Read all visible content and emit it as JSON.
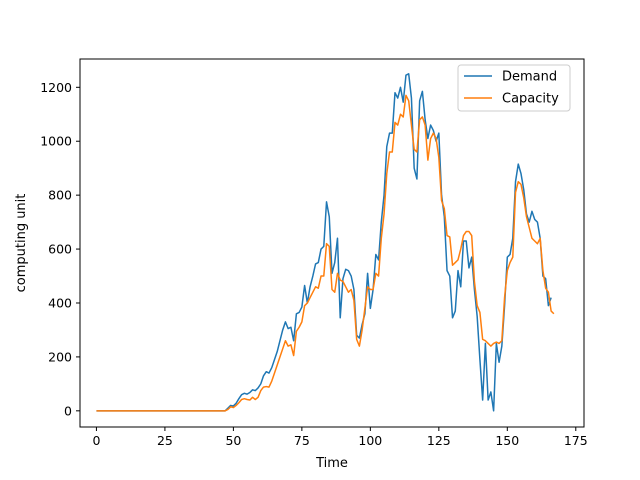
{
  "chart_data": {
    "type": "line",
    "title": "",
    "xlabel": "Time",
    "ylabel": "computing unit",
    "xlim": [
      -6,
      178
    ],
    "ylim": [
      -60,
      1305
    ],
    "x_ticks": [
      0,
      25,
      50,
      75,
      100,
      125,
      150,
      175
    ],
    "y_ticks": [
      0,
      200,
      400,
      600,
      800,
      1000,
      1200
    ],
    "grid": false,
    "legend": "top-right",
    "series": [
      {
        "name": "Demand",
        "color": "#1f77b4",
        "points": [
          [
            0,
            0
          ],
          [
            10,
            0
          ],
          [
            20,
            0
          ],
          [
            30,
            0
          ],
          [
            40,
            0
          ],
          [
            47,
            0
          ],
          [
            48,
            10
          ],
          [
            49,
            20
          ],
          [
            50,
            18
          ],
          [
            51,
            28
          ],
          [
            52,
            45
          ],
          [
            53,
            60
          ],
          [
            54,
            65
          ],
          [
            55,
            62
          ],
          [
            56,
            68
          ],
          [
            57,
            78
          ],
          [
            58,
            75
          ],
          [
            59,
            85
          ],
          [
            60,
            100
          ],
          [
            61,
            130
          ],
          [
            62,
            145
          ],
          [
            63,
            140
          ],
          [
            64,
            160
          ],
          [
            65,
            190
          ],
          [
            66,
            220
          ],
          [
            67,
            260
          ],
          [
            68,
            300
          ],
          [
            69,
            330
          ],
          [
            70,
            305
          ],
          [
            71,
            310
          ],
          [
            72,
            260
          ],
          [
            73,
            360
          ],
          [
            74,
            365
          ],
          [
            75,
            385
          ],
          [
            76,
            465
          ],
          [
            77,
            400
          ],
          [
            78,
            460
          ],
          [
            79,
            500
          ],
          [
            80,
            545
          ],
          [
            81,
            550
          ],
          [
            82,
            600
          ],
          [
            83,
            610
          ],
          [
            84,
            775
          ],
          [
            85,
            720
          ],
          [
            86,
            510
          ],
          [
            87,
            550
          ],
          [
            88,
            640
          ],
          [
            89,
            345
          ],
          [
            90,
            490
          ],
          [
            91,
            525
          ],
          [
            92,
            520
          ],
          [
            93,
            500
          ],
          [
            94,
            450
          ],
          [
            95,
            280
          ],
          [
            96,
            270
          ],
          [
            97,
            320
          ],
          [
            98,
            360
          ],
          [
            99,
            510
          ],
          [
            100,
            380
          ],
          [
            101,
            450
          ],
          [
            102,
            580
          ],
          [
            103,
            560
          ],
          [
            104,
            700
          ],
          [
            105,
            800
          ],
          [
            106,
            980
          ],
          [
            107,
            1030
          ],
          [
            108,
            1030
          ],
          [
            109,
            1180
          ],
          [
            110,
            1160
          ],
          [
            111,
            1200
          ],
          [
            112,
            1145
          ],
          [
            113,
            1245
          ],
          [
            114,
            1250
          ],
          [
            115,
            1160
          ],
          [
            116,
            900
          ],
          [
            117,
            860
          ],
          [
            118,
            1150
          ],
          [
            119,
            1185
          ],
          [
            120,
            1080
          ],
          [
            121,
            1010
          ],
          [
            122,
            1060
          ],
          [
            123,
            1040
          ],
          [
            124,
            1000
          ],
          [
            125,
            1030
          ],
          [
            126,
            800
          ],
          [
            127,
            720
          ],
          [
            128,
            520
          ],
          [
            129,
            500
          ],
          [
            130,
            345
          ],
          [
            131,
            370
          ],
          [
            132,
            520
          ],
          [
            133,
            460
          ],
          [
            134,
            630
          ],
          [
            135,
            630
          ],
          [
            136,
            530
          ],
          [
            137,
            570
          ],
          [
            138,
            450
          ],
          [
            139,
            350
          ],
          [
            140,
            190
          ],
          [
            141,
            40
          ],
          [
            142,
            250
          ],
          [
            143,
            40
          ],
          [
            144,
            70
          ],
          [
            145,
            0
          ],
          [
            146,
            250
          ],
          [
            147,
            180
          ],
          [
            148,
            240
          ],
          [
            149,
            390
          ],
          [
            150,
            570
          ],
          [
            151,
            580
          ],
          [
            152,
            640
          ],
          [
            153,
            850
          ],
          [
            154,
            915
          ],
          [
            155,
            880
          ],
          [
            156,
            820
          ],
          [
            157,
            730
          ],
          [
            158,
            700
          ],
          [
            159,
            740
          ],
          [
            160,
            710
          ],
          [
            161,
            700
          ],
          [
            162,
            640
          ],
          [
            163,
            500
          ],
          [
            164,
            490
          ],
          [
            165,
            390
          ],
          [
            166,
            420
          ]
        ]
      },
      {
        "name": "Capacity",
        "color": "#ff7f0e",
        "points": [
          [
            0,
            0
          ],
          [
            10,
            0
          ],
          [
            20,
            0
          ],
          [
            30,
            0
          ],
          [
            40,
            0
          ],
          [
            47,
            0
          ],
          [
            48,
            5
          ],
          [
            49,
            15
          ],
          [
            50,
            12
          ],
          [
            51,
            20
          ],
          [
            52,
            30
          ],
          [
            53,
            42
          ],
          [
            54,
            45
          ],
          [
            55,
            42
          ],
          [
            56,
            40
          ],
          [
            57,
            50
          ],
          [
            58,
            42
          ],
          [
            59,
            50
          ],
          [
            60,
            75
          ],
          [
            61,
            88
          ],
          [
            62,
            90
          ],
          [
            63,
            88
          ],
          [
            64,
            110
          ],
          [
            65,
            140
          ],
          [
            66,
            170
          ],
          [
            67,
            200
          ],
          [
            68,
            230
          ],
          [
            69,
            260
          ],
          [
            70,
            240
          ],
          [
            71,
            245
          ],
          [
            72,
            205
          ],
          [
            73,
            295
          ],
          [
            74,
            310
          ],
          [
            75,
            330
          ],
          [
            76,
            390
          ],
          [
            77,
            400
          ],
          [
            78,
            420
          ],
          [
            79,
            440
          ],
          [
            80,
            460
          ],
          [
            81,
            455
          ],
          [
            82,
            500
          ],
          [
            83,
            500
          ],
          [
            84,
            620
          ],
          [
            85,
            610
          ],
          [
            86,
            450
          ],
          [
            87,
            440
          ],
          [
            88,
            510
          ],
          [
            89,
            485
          ],
          [
            90,
            480
          ],
          [
            91,
            460
          ],
          [
            92,
            440
          ],
          [
            93,
            450
          ],
          [
            94,
            410
          ],
          [
            95,
            265
          ],
          [
            96,
            240
          ],
          [
            97,
            300
          ],
          [
            98,
            380
          ],
          [
            99,
            460
          ],
          [
            100,
            450
          ],
          [
            101,
            450
          ],
          [
            102,
            510
          ],
          [
            103,
            500
          ],
          [
            104,
            640
          ],
          [
            105,
            730
          ],
          [
            106,
            880
          ],
          [
            107,
            960
          ],
          [
            108,
            960
          ],
          [
            109,
            1070
          ],
          [
            110,
            1060
          ],
          [
            111,
            1100
          ],
          [
            112,
            1090
          ],
          [
            113,
            1170
          ],
          [
            114,
            1150
          ],
          [
            115,
            1060
          ],
          [
            116,
            970
          ],
          [
            117,
            960
          ],
          [
            118,
            1080
          ],
          [
            119,
            1090
          ],
          [
            120,
            1060
          ],
          [
            121,
            930
          ],
          [
            122,
            1010
          ],
          [
            123,
            1030
          ],
          [
            124,
            1010
          ],
          [
            125,
            940
          ],
          [
            126,
            780
          ],
          [
            127,
            750
          ],
          [
            128,
            650
          ],
          [
            129,
            645
          ],
          [
            130,
            540
          ],
          [
            131,
            550
          ],
          [
            132,
            560
          ],
          [
            133,
            600
          ],
          [
            134,
            650
          ],
          [
            135,
            665
          ],
          [
            136,
            665
          ],
          [
            137,
            650
          ],
          [
            138,
            480
          ],
          [
            139,
            390
          ],
          [
            140,
            365
          ],
          [
            141,
            265
          ],
          [
            142,
            260
          ],
          [
            143,
            250
          ],
          [
            144,
            240
          ],
          [
            145,
            250
          ],
          [
            146,
            255
          ],
          [
            147,
            250
          ],
          [
            148,
            260
          ],
          [
            149,
            420
          ],
          [
            150,
            520
          ],
          [
            151,
            550
          ],
          [
            152,
            570
          ],
          [
            153,
            810
          ],
          [
            154,
            850
          ],
          [
            155,
            840
          ],
          [
            156,
            790
          ],
          [
            157,
            720
          ],
          [
            158,
            680
          ],
          [
            159,
            640
          ],
          [
            160,
            630
          ],
          [
            161,
            620
          ],
          [
            162,
            640
          ],
          [
            163,
            520
          ],
          [
            164,
            455
          ],
          [
            165,
            440
          ],
          [
            166,
            370
          ],
          [
            167,
            360
          ]
        ]
      }
    ]
  }
}
